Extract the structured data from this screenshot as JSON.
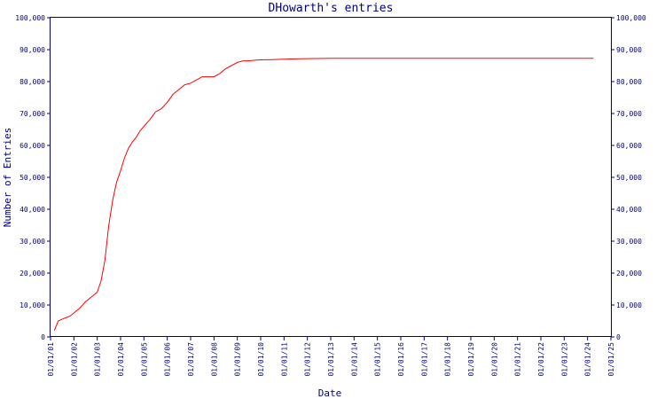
{
  "chart_data": {
    "type": "line",
    "title": "DHowarth's entries",
    "xlabel": "Date",
    "ylabel": "Number of Entries",
    "x_ticks": [
      "01/01/01",
      "01/01/02",
      "01/01/03",
      "01/01/04",
      "01/01/05",
      "01/01/06",
      "01/01/07",
      "01/01/08",
      "01/01/09",
      "01/01/10",
      "01/01/11",
      "01/01/12",
      "01/01/13",
      "01/01/14",
      "01/01/15",
      "01/01/16",
      "01/01/17",
      "01/01/18",
      "01/01/19",
      "01/01/20",
      "01/01/21",
      "01/01/22",
      "01/01/23",
      "01/01/24",
      "01/01/25"
    ],
    "y_ticks": [
      "0",
      "10,000",
      "20,000",
      "30,000",
      "40,000",
      "50,000",
      "60,000",
      "70,000",
      "80,000",
      "90,000",
      "100,000"
    ],
    "ylim": [
      0,
      100000
    ],
    "xlim": [
      "2001-01-01",
      "2025-01-01"
    ],
    "grid": false,
    "line_color": "#ff0000",
    "axis_color": "#000080",
    "series": [
      {
        "x": [
          "2001-03-01",
          "2001-05-01",
          "2001-08-01",
          "2001-11-01",
          "2002-01-01",
          "2002-04-01",
          "2002-07-01",
          "2002-10-01",
          "2003-01-01",
          "2003-03-01",
          "2003-05-01",
          "2003-07-01",
          "2003-09-01",
          "2003-11-01",
          "2004-01-01",
          "2004-03-01",
          "2004-05-01",
          "2004-07-01",
          "2004-09-01",
          "2004-11-01",
          "2005-01-01",
          "2005-04-01",
          "2005-07-01",
          "2005-10-01",
          "2006-01-01",
          "2006-04-01",
          "2006-07-01",
          "2006-10-01",
          "2007-01-01",
          "2007-04-01",
          "2007-07-01",
          "2007-10-01",
          "2008-01-01",
          "2008-04-01",
          "2008-07-01",
          "2008-10-01",
          "2009-01-01",
          "2009-04-01",
          "2009-07-01",
          "2009-10-01",
          "2010-01-01",
          "2010-07-01",
          "2011-01-01",
          "2011-07-01",
          "2012-01-01",
          "2013-01-01",
          "2016-01-01",
          "2020-01-01",
          "2024-01-01",
          "2024-04-01"
        ],
        "y": [
          2000,
          5000,
          5800,
          6500,
          7500,
          9000,
          11000,
          12500,
          14000,
          17500,
          24000,
          35000,
          43000,
          48500,
          52000,
          56000,
          59000,
          61000,
          62500,
          64500,
          66000,
          68000,
          70500,
          71500,
          73500,
          76000,
          77500,
          79000,
          79500,
          80500,
          81500,
          81500,
          81500,
          82500,
          84000,
          85000,
          86000,
          86500,
          86500,
          86700,
          86800,
          86900,
          87000,
          87100,
          87200,
          87300,
          87300,
          87300,
          87300,
          87300
        ]
      }
    ]
  }
}
